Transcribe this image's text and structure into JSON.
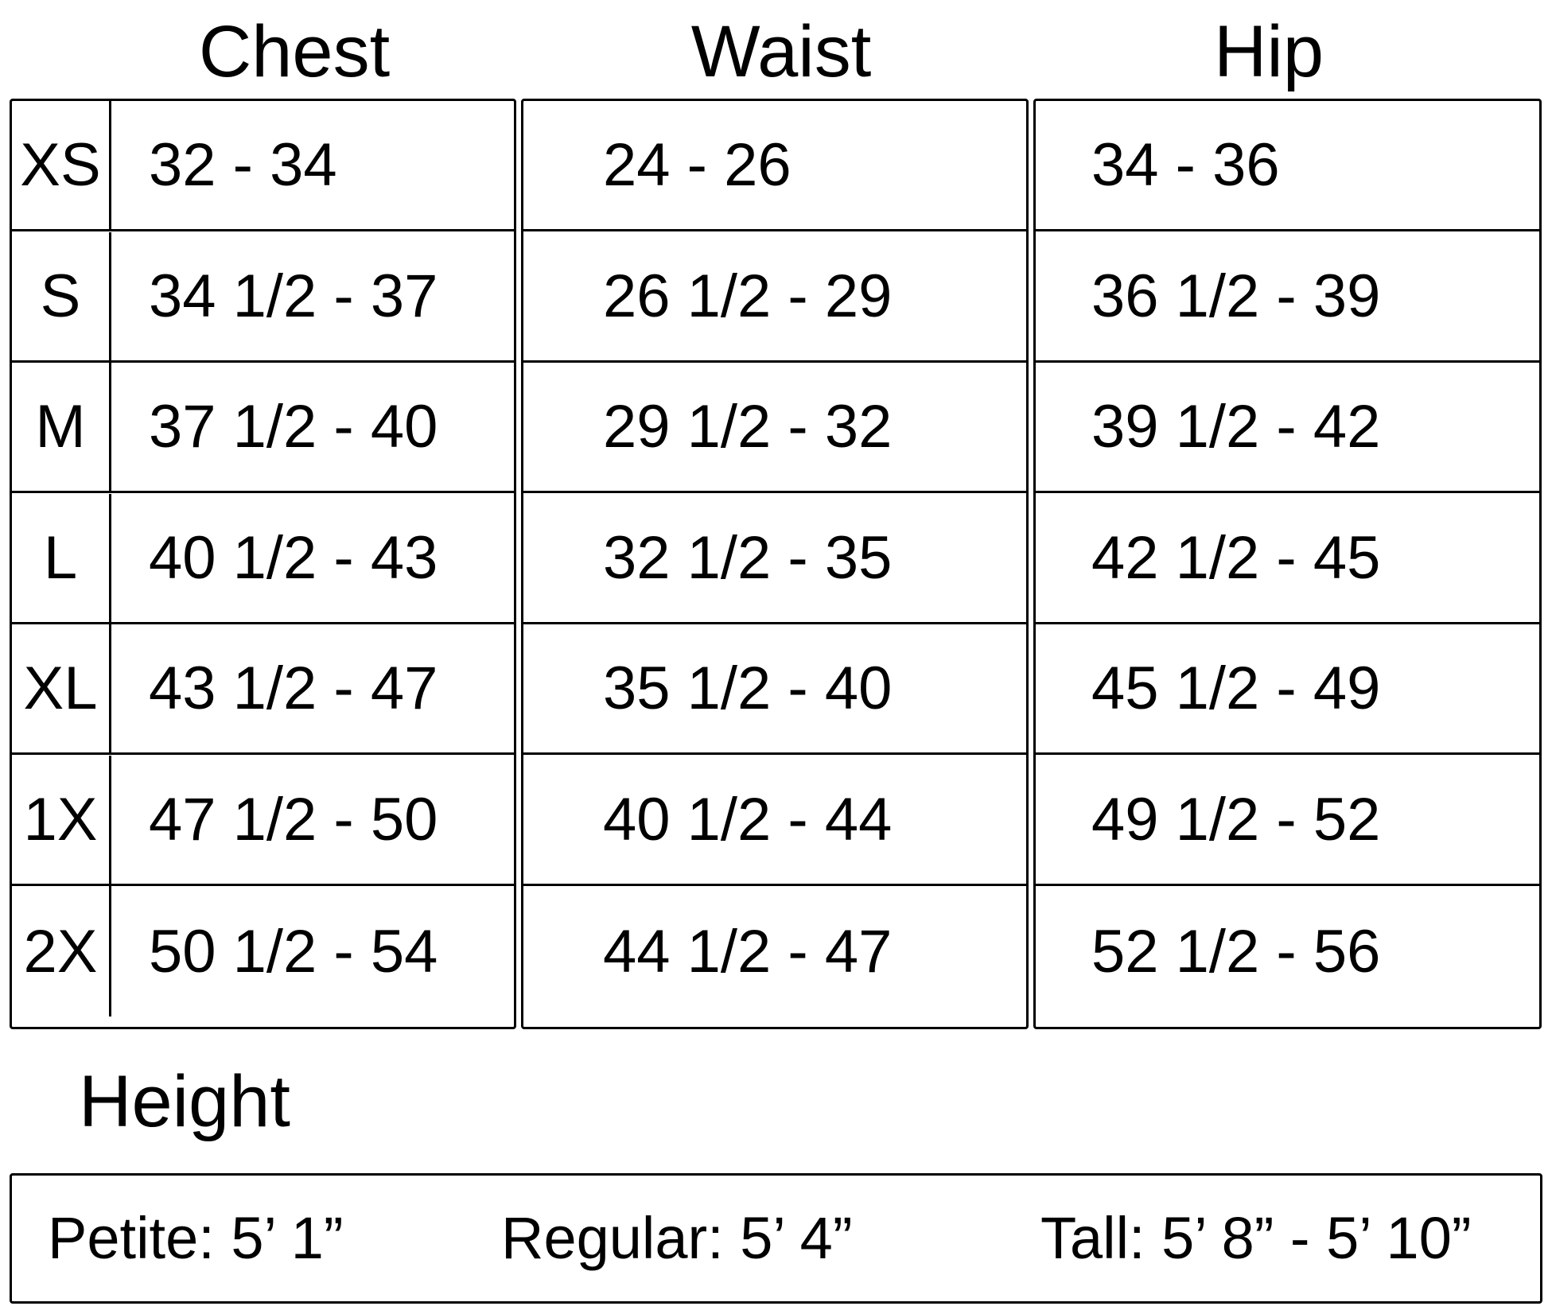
{
  "headers": {
    "chest": "Chest",
    "waist": "Waist",
    "hip": "Hip"
  },
  "rows": [
    {
      "size": "XS",
      "chest": "32 - 34",
      "waist": "24 - 26",
      "hip": "34 - 36"
    },
    {
      "size": "S",
      "chest": "34 1/2 - 37",
      "waist": "26 1/2 - 29",
      "hip": "36 1/2 - 39"
    },
    {
      "size": "M",
      "chest": "37 1/2 - 40",
      "waist": "29 1/2 - 32",
      "hip": "39 1/2 - 42"
    },
    {
      "size": "L",
      "chest": "40 1/2 - 43",
      "waist": "32 1/2 - 35",
      "hip": "42 1/2 - 45"
    },
    {
      "size": "XL",
      "chest": "43 1/2 - 47",
      "waist": "35 1/2 - 40",
      "hip": "45 1/2 - 49"
    },
    {
      "size": "1X",
      "chest": "47 1/2 - 50",
      "waist": "40 1/2 - 44",
      "hip": "49 1/2 - 52"
    },
    {
      "size": "2X",
      "chest": "50 1/2 - 54",
      "waist": "44 1/2 - 47",
      "hip": "52 1/2 - 56"
    }
  ],
  "height": {
    "title": "Height",
    "petite": "Petite: 5’ 1”",
    "regular": "Regular: 5’ 4”",
    "tall": "Tall: 5’ 8” - 5’ 10”"
  }
}
